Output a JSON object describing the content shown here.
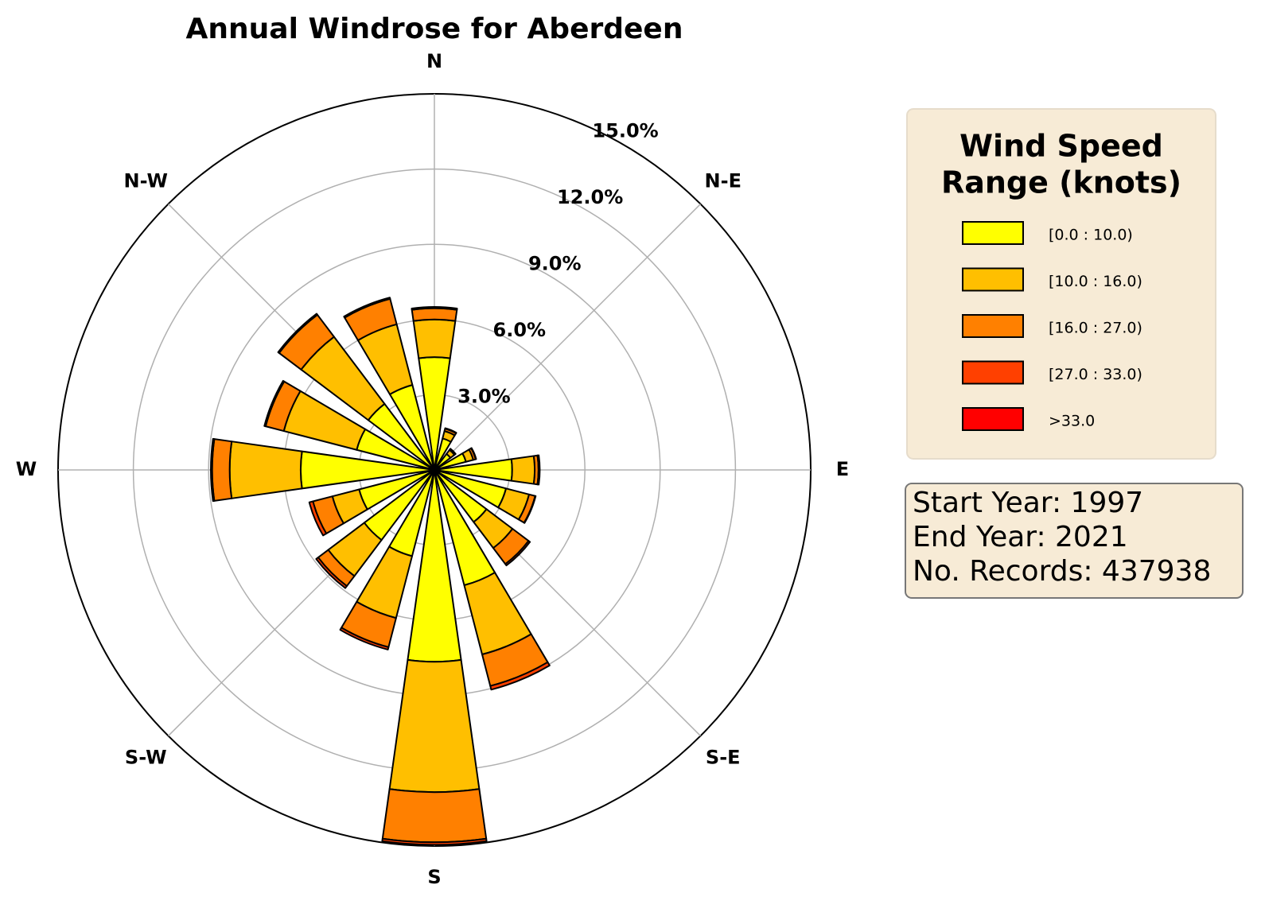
{
  "chart_data": {
    "type": "windrose",
    "title": "Annual Windrose for Aberdeen",
    "categories": [
      "N",
      null,
      "N-E",
      null,
      "E",
      null,
      "S-E",
      null,
      "S",
      null,
      "S-W",
      null,
      "W",
      null,
      "N-W",
      null
    ],
    "ylim": [
      0,
      15
    ],
    "yticks": [
      {
        "value": 3,
        "label": "3.0%"
      },
      {
        "value": 6,
        "label": "6.0%"
      },
      {
        "value": 9,
        "label": "9.0%"
      },
      {
        "value": 12,
        "label": "12.0%"
      },
      {
        "value": 15,
        "label": "15.0%"
      }
    ],
    "grid": true,
    "legend_title": [
      "Wind Speed",
      "Range (knots)"
    ],
    "series": [
      {
        "name": "[0.0 : 10.0)",
        "color": "#ffff00",
        "values": [
          4.5,
          1.3,
          0.8,
          1.3,
          3.1,
          2.95,
          2.6,
          4.75,
          7.65,
          3.55,
          3.5,
          3.1,
          5.33,
          3.2,
          3.3,
          3.5
        ]
      },
      {
        "name": "[10.0 : 16.0)",
        "color": "#ffbf00",
        "values": [
          1.5,
          0.3,
          0.2,
          0.3,
          0.9,
          0.95,
          1.3,
          2.85,
          5.2,
          2.55,
          1.8,
          1.1,
          2.83,
          3.0,
          3.35,
          2.5
        ]
      },
      {
        "name": "[16.0 : 27.0)",
        "color": "#ff8000",
        "values": [
          0.45,
          0.1,
          0.05,
          0.1,
          0.15,
          0.25,
          0.8,
          1.3,
          2.0,
          1.2,
          0.5,
          0.8,
          0.7,
          0.75,
          1.1,
          1.05
        ]
      },
      {
        "name": "[27.0 : 33.0)",
        "color": "#ff4000",
        "values": [
          0.05,
          0.02,
          0.01,
          0.02,
          0.05,
          0.02,
          0.07,
          0.15,
          0.1,
          0.1,
          0.1,
          0.15,
          0.05,
          0.05,
          0.05,
          0.05
        ]
      },
      {
        "name": ">33.0",
        "color": "#ff0000",
        "values": [
          0,
          0,
          0,
          0,
          0,
          0,
          0,
          0,
          0,
          0,
          0,
          0,
          0,
          0,
          0,
          0
        ]
      }
    ],
    "info": [
      "Start Year: 1997",
      "End Year: 2021",
      "No. Records: 437938"
    ]
  }
}
